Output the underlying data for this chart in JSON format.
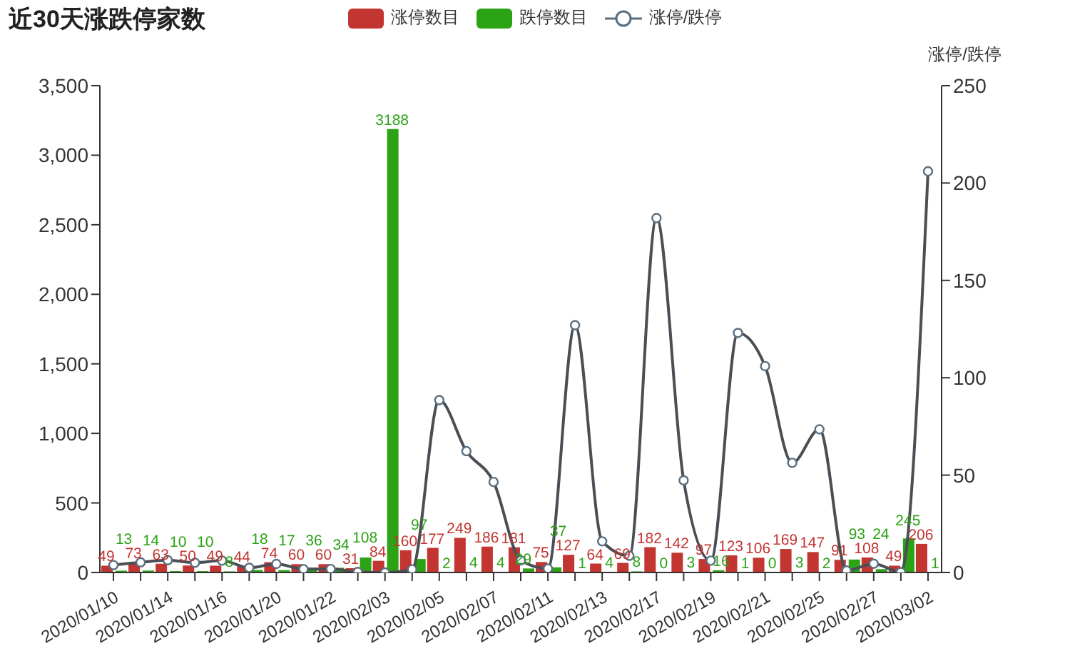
{
  "chart_data": {
    "type": "bar",
    "title": "近30天涨跌停家数",
    "y2label": "涨停/跌停",
    "categories": [
      "2020/01/10",
      null,
      "2020/01/14",
      null,
      "2020/01/16",
      null,
      "2020/01/20",
      null,
      "2020/01/22",
      null,
      "2020/02/03",
      null,
      "2020/02/05",
      null,
      "2020/02/07",
      null,
      "2020/02/11",
      null,
      "2020/02/13",
      null,
      "2020/02/17",
      null,
      "2020/02/19",
      null,
      "2020/02/21",
      null,
      "2020/02/25",
      null,
      "2020/02/27",
      null,
      "2020/03/02"
    ],
    "series": [
      {
        "name": "涨停数目",
        "color": "#c23531",
        "values": [
          49,
          73,
          63,
          50,
          49,
          44,
          74,
          60,
          60,
          31,
          84,
          160,
          177,
          249,
          186,
          181,
          75,
          127,
          64,
          69,
          182,
          142,
          97,
          123,
          106,
          169,
          147,
          91,
          108,
          49,
          206
        ],
        "value_labels": [
          "49",
          "73",
          "63",
          "50",
          "49",
          "44",
          "74",
          "60",
          "60",
          "31",
          "84",
          "160",
          "177",
          "249",
          "186",
          "181",
          "75",
          "127",
          "64",
          "69",
          "182",
          "142",
          "97",
          "123",
          "106",
          "169",
          "147",
          "91",
          "108",
          "49",
          "206"
        ]
      },
      {
        "name": "跌停数目",
        "color": "#2ca215",
        "values": [
          13,
          14,
          10,
          10,
          8,
          18,
          17,
          36,
          34,
          108,
          3188,
          97,
          2,
          4,
          4,
          29,
          37,
          1,
          4,
          8,
          0,
          3,
          16,
          1,
          0,
          3,
          2,
          93,
          24,
          245,
          1
        ],
        "value_labels": [
          "13",
          "14",
          "10",
          "10",
          "8",
          "18",
          "17",
          "36",
          "34",
          "108",
          "3188",
          "97",
          "2",
          "4",
          "4",
          "29",
          "37",
          "1",
          "4",
          "8",
          "0",
          "3",
          "16",
          "1",
          "0",
          "3",
          "2",
          "93",
          "24",
          "245",
          "1"
        ]
      },
      {
        "name": "涨停/跌停",
        "type": "line",
        "axis": "y2",
        "color": "#4a4f55",
        "values": [
          3.8,
          5.2,
          6.3,
          5,
          6.1,
          2.4,
          4.4,
          1.7,
          1.8,
          0.3,
          0,
          1.6,
          88.5,
          62.3,
          46.5,
          6.2,
          2,
          127,
          16,
          8.6,
          182,
          47.3,
          6.1,
          123,
          106,
          56.3,
          73.5,
          1,
          4.5,
          0.2,
          206
        ]
      }
    ],
    "ylim": [
      0,
      3500
    ],
    "yticks": [
      0,
      500,
      {
        "value": 1000,
        "label": "1,000"
      },
      {
        "value": 1500,
        "label": "1,500"
      },
      {
        "value": 2000,
        "label": "2,000"
      },
      {
        "value": 2500,
        "label": "2,500"
      },
      {
        "value": 3000,
        "label": "3,000"
      },
      {
        "value": 3500,
        "label": "3,500"
      }
    ],
    "y2lim": [
      0,
      250
    ],
    "y2ticks": [
      0,
      50,
      100,
      150,
      200,
      250
    ],
    "grid": false,
    "legend": "top",
    "marker": "circle",
    "line_style": "solid"
  }
}
